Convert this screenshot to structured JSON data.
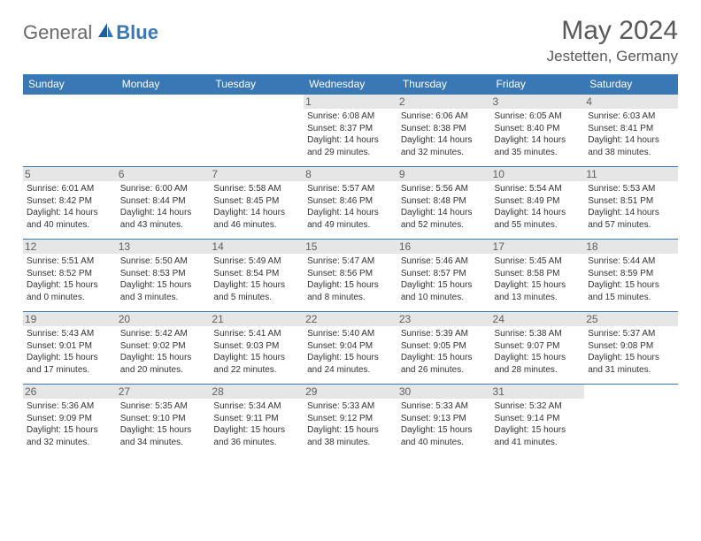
{
  "logo": {
    "general": "General",
    "blue": "Blue"
  },
  "title": "May 2024",
  "location": "Jestetten, Germany",
  "weekdays": [
    "Sunday",
    "Monday",
    "Tuesday",
    "Wednesday",
    "Thursday",
    "Friday",
    "Saturday"
  ],
  "colors": {
    "header_bg": "#3a78b5",
    "header_text": "#ffffff",
    "border": "#3a78b5",
    "title_color": "#595959",
    "shade": "#e6e6e6"
  },
  "startOffset": 3,
  "days": [
    {
      "n": 1,
      "sunrise": "6:08 AM",
      "sunset": "8:37 PM",
      "daylight": "14 hours and 29 minutes."
    },
    {
      "n": 2,
      "sunrise": "6:06 AM",
      "sunset": "8:38 PM",
      "daylight": "14 hours and 32 minutes."
    },
    {
      "n": 3,
      "sunrise": "6:05 AM",
      "sunset": "8:40 PM",
      "daylight": "14 hours and 35 minutes."
    },
    {
      "n": 4,
      "sunrise": "6:03 AM",
      "sunset": "8:41 PM",
      "daylight": "14 hours and 38 minutes."
    },
    {
      "n": 5,
      "sunrise": "6:01 AM",
      "sunset": "8:42 PM",
      "daylight": "14 hours and 40 minutes."
    },
    {
      "n": 6,
      "sunrise": "6:00 AM",
      "sunset": "8:44 PM",
      "daylight": "14 hours and 43 minutes."
    },
    {
      "n": 7,
      "sunrise": "5:58 AM",
      "sunset": "8:45 PM",
      "daylight": "14 hours and 46 minutes."
    },
    {
      "n": 8,
      "sunrise": "5:57 AM",
      "sunset": "8:46 PM",
      "daylight": "14 hours and 49 minutes."
    },
    {
      "n": 9,
      "sunrise": "5:56 AM",
      "sunset": "8:48 PM",
      "daylight": "14 hours and 52 minutes."
    },
    {
      "n": 10,
      "sunrise": "5:54 AM",
      "sunset": "8:49 PM",
      "daylight": "14 hours and 55 minutes."
    },
    {
      "n": 11,
      "sunrise": "5:53 AM",
      "sunset": "8:51 PM",
      "daylight": "14 hours and 57 minutes."
    },
    {
      "n": 12,
      "sunrise": "5:51 AM",
      "sunset": "8:52 PM",
      "daylight": "15 hours and 0 minutes."
    },
    {
      "n": 13,
      "sunrise": "5:50 AM",
      "sunset": "8:53 PM",
      "daylight": "15 hours and 3 minutes."
    },
    {
      "n": 14,
      "sunrise": "5:49 AM",
      "sunset": "8:54 PM",
      "daylight": "15 hours and 5 minutes."
    },
    {
      "n": 15,
      "sunrise": "5:47 AM",
      "sunset": "8:56 PM",
      "daylight": "15 hours and 8 minutes."
    },
    {
      "n": 16,
      "sunrise": "5:46 AM",
      "sunset": "8:57 PM",
      "daylight": "15 hours and 10 minutes."
    },
    {
      "n": 17,
      "sunrise": "5:45 AM",
      "sunset": "8:58 PM",
      "daylight": "15 hours and 13 minutes."
    },
    {
      "n": 18,
      "sunrise": "5:44 AM",
      "sunset": "8:59 PM",
      "daylight": "15 hours and 15 minutes."
    },
    {
      "n": 19,
      "sunrise": "5:43 AM",
      "sunset": "9:01 PM",
      "daylight": "15 hours and 17 minutes."
    },
    {
      "n": 20,
      "sunrise": "5:42 AM",
      "sunset": "9:02 PM",
      "daylight": "15 hours and 20 minutes."
    },
    {
      "n": 21,
      "sunrise": "5:41 AM",
      "sunset": "9:03 PM",
      "daylight": "15 hours and 22 minutes."
    },
    {
      "n": 22,
      "sunrise": "5:40 AM",
      "sunset": "9:04 PM",
      "daylight": "15 hours and 24 minutes."
    },
    {
      "n": 23,
      "sunrise": "5:39 AM",
      "sunset": "9:05 PM",
      "daylight": "15 hours and 26 minutes."
    },
    {
      "n": 24,
      "sunrise": "5:38 AM",
      "sunset": "9:07 PM",
      "daylight": "15 hours and 28 minutes."
    },
    {
      "n": 25,
      "sunrise": "5:37 AM",
      "sunset": "9:08 PM",
      "daylight": "15 hours and 31 minutes."
    },
    {
      "n": 26,
      "sunrise": "5:36 AM",
      "sunset": "9:09 PM",
      "daylight": "15 hours and 32 minutes."
    },
    {
      "n": 27,
      "sunrise": "5:35 AM",
      "sunset": "9:10 PM",
      "daylight": "15 hours and 34 minutes."
    },
    {
      "n": 28,
      "sunrise": "5:34 AM",
      "sunset": "9:11 PM",
      "daylight": "15 hours and 36 minutes."
    },
    {
      "n": 29,
      "sunrise": "5:33 AM",
      "sunset": "9:12 PM",
      "daylight": "15 hours and 38 minutes."
    },
    {
      "n": 30,
      "sunrise": "5:33 AM",
      "sunset": "9:13 PM",
      "daylight": "15 hours and 40 minutes."
    },
    {
      "n": 31,
      "sunrise": "5:32 AM",
      "sunset": "9:14 PM",
      "daylight": "15 hours and 41 minutes."
    }
  ],
  "labels": {
    "sunrise": "Sunrise:",
    "sunset": "Sunset:",
    "daylight": "Daylight:"
  }
}
